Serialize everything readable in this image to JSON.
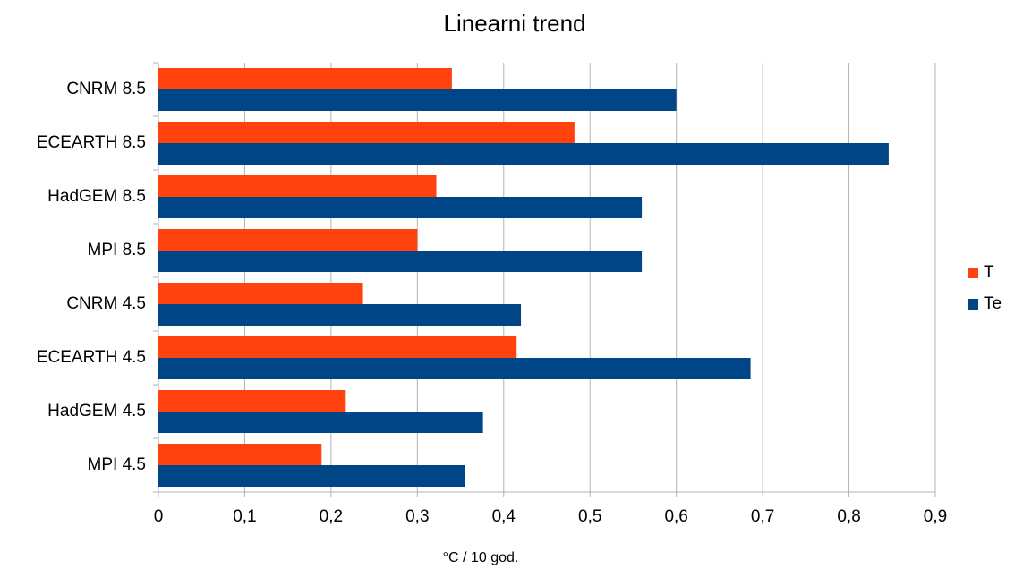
{
  "chart_data": {
    "type": "hbar",
    "title": "Linearni trend",
    "x_label": "°C / 10 god.",
    "categories": [
      "CNRM 8.5",
      "ECEARTH 8.5",
      "HadGEM 8.5",
      "MPI 8.5",
      "CNRM 4.5",
      "ECEARTH 4.5",
      "HadGEM 4.5",
      "MPI 4.5"
    ],
    "series": [
      {
        "name": "T",
        "color": "#ff420e",
        "values": [
          0.34,
          0.482,
          0.322,
          0.3,
          0.237,
          0.415,
          0.217,
          0.189
        ]
      },
      {
        "name": "Te",
        "color": "#004586",
        "values": [
          0.6,
          0.846,
          0.56,
          0.56,
          0.42,
          0.686,
          0.376,
          0.355
        ]
      }
    ],
    "xlim": [
      0,
      0.9
    ],
    "xticks": [
      0,
      {
        "value": 0.1,
        "label": "0,1"
      },
      {
        "value": 0.2,
        "label": "0,2"
      },
      {
        "value": 0.3,
        "label": "0,3"
      },
      {
        "value": 0.4,
        "label": "0,4"
      },
      {
        "value": 0.5,
        "label": "0,5"
      },
      {
        "value": 0.6,
        "label": "0,6"
      },
      {
        "value": 0.7,
        "label": "0,7"
      },
      {
        "value": 0.8,
        "label": "0,8"
      },
      {
        "value": 0.9,
        "label": "0,9"
      }
    ],
    "grid": true,
    "legend": "right"
  }
}
